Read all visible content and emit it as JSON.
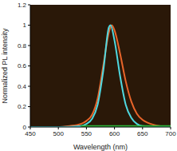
{
  "chart_data": {
    "type": "line",
    "x_label": "Wavelength (nm)",
    "y_label": "Normalized PL intensity",
    "xlim": [
      450,
      700
    ],
    "xticks": [
      450,
      500,
      550,
      600,
      650,
      700
    ],
    "ylim": [
      0,
      1.2
    ],
    "yticks": [
      0,
      0.2,
      0.4,
      0.6,
      0.8,
      1,
      1.2
    ],
    "grid": false,
    "series": [
      {
        "color": "#e8642a",
        "x": [
          450,
          500,
          520,
          540,
          550,
          560,
          570,
          580,
          590,
          595,
          600,
          610,
          620,
          630,
          640,
          650,
          660,
          680,
          700
        ],
        "values": [
          0,
          0,
          0.01,
          0.03,
          0.06,
          0.12,
          0.28,
          0.6,
          0.93,
          1,
          0.95,
          0.72,
          0.45,
          0.25,
          0.13,
          0.07,
          0.04,
          0.01,
          0
        ]
      },
      {
        "color": "#4fd8e0",
        "x": [
          450,
          500,
          540,
          550,
          560,
          570,
          580,
          590,
          593,
          600,
          610,
          620,
          630,
          640,
          650,
          700
        ],
        "values": [
          0,
          0,
          0.01,
          0.03,
          0.08,
          0.22,
          0.55,
          0.98,
          1,
          0.85,
          0.5,
          0.22,
          0.09,
          0.03,
          0.01,
          0
        ]
      },
      {
        "color": "#2db83a",
        "x": [
          540,
          600,
          700
        ],
        "values": [
          0.01,
          0.01,
          0.01
        ]
      }
    ]
  }
}
